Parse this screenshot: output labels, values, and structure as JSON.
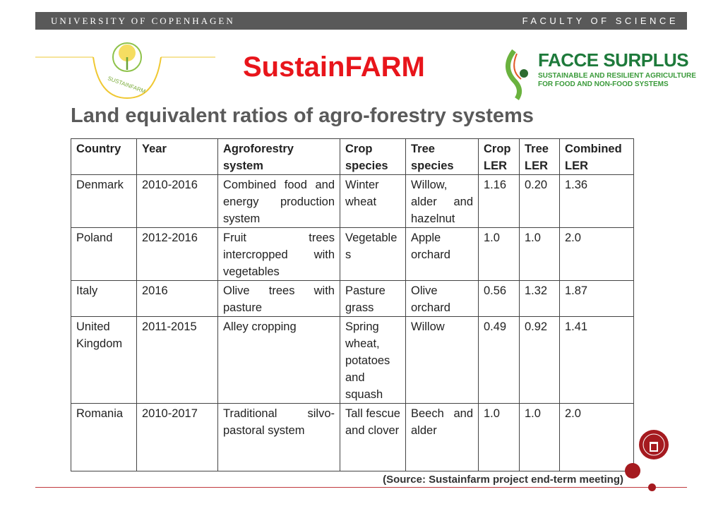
{
  "header": {
    "left": "UNIVERSITY OF COPENHAGEN",
    "right": "FACULTY OF SCIENCE"
  },
  "logos": {
    "sustainfarm": "SUSTAINFARM",
    "facce_name": "FACCE SURPLUS",
    "facce_sub1": "SUSTAINABLE AND RESILIENT AGRICULTURE",
    "facce_sub2": "FOR FOOD AND NON-FOOD SYSTEMS"
  },
  "title": "SustainFARM",
  "subtitle": "Land equivalent ratios of agro-forestry systems",
  "table": {
    "headers": [
      "Country",
      "Year",
      "Agroforestry system",
      "Crop species",
      "Tree species",
      "Crop LER",
      "Tree LER",
      "Combined LER"
    ],
    "rows": [
      [
        "Denmark",
        "2010-2016",
        "Combined food and energy production system",
        "Winter wheat",
        "Willow, alder and hazelnut",
        "1.16",
        "0.20",
        "1.36"
      ],
      [
        "Poland",
        "2012-2016",
        "Fruit trees intercropped with vegetables",
        "Vegetables",
        "Apple orchard",
        "1.0",
        "1.0",
        "2.0"
      ],
      [
        "Italy",
        "2016",
        "Olive trees with pasture",
        "Pasture grass",
        "Olive orchard",
        "0.56",
        "1.32",
        "1.87"
      ],
      [
        "United Kingdom",
        "2011-2015",
        "Alley cropping",
        "Spring wheat, potatoes and squash",
        "Willow",
        "0.49",
        "0.92",
        "1.41"
      ],
      [
        "Romania",
        "2010-2017",
        "Traditional silvo-pastoral system",
        "Tall fescue and clover",
        "Beech and alder",
        "1.0",
        "1.0",
        "2.0"
      ]
    ]
  },
  "source": "(Source: Sustainfarm project end-term meeting)",
  "colors": {
    "title": "#e8151b",
    "accent": "#a51a1f",
    "header_bar": "#595959"
  }
}
